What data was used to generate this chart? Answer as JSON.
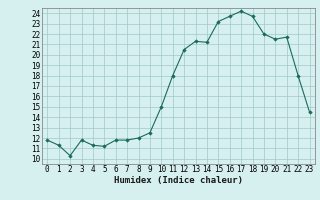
{
  "x": [
    0,
    1,
    2,
    3,
    4,
    5,
    6,
    7,
    8,
    9,
    10,
    11,
    12,
    13,
    14,
    15,
    16,
    17,
    18,
    19,
    20,
    21,
    22,
    23
  ],
  "y": [
    11.8,
    11.3,
    10.3,
    11.8,
    11.3,
    11.2,
    11.8,
    11.8,
    12.0,
    12.5,
    15.0,
    18.0,
    20.5,
    21.3,
    21.2,
    23.2,
    23.7,
    24.2,
    23.7,
    22.0,
    21.5,
    21.7,
    18.0,
    14.5
  ],
  "line_color": "#1a6b5a",
  "marker": "D",
  "marker_size": 1.8,
  "bg_color": "#d6f0f0",
  "grid_color": "#a0c8c8",
  "xlabel": "Humidex (Indice chaleur)",
  "xlim": [
    -0.5,
    23.5
  ],
  "ylim": [
    9.5,
    24.5
  ],
  "yticks": [
    10,
    11,
    12,
    13,
    14,
    15,
    16,
    17,
    18,
    19,
    20,
    21,
    22,
    23,
    24
  ],
  "xticks": [
    0,
    1,
    2,
    3,
    4,
    5,
    6,
    7,
    8,
    9,
    10,
    11,
    12,
    13,
    14,
    15,
    16,
    17,
    18,
    19,
    20,
    21,
    22,
    23
  ],
  "xlabel_fontsize": 6.5,
  "tick_fontsize": 5.5
}
